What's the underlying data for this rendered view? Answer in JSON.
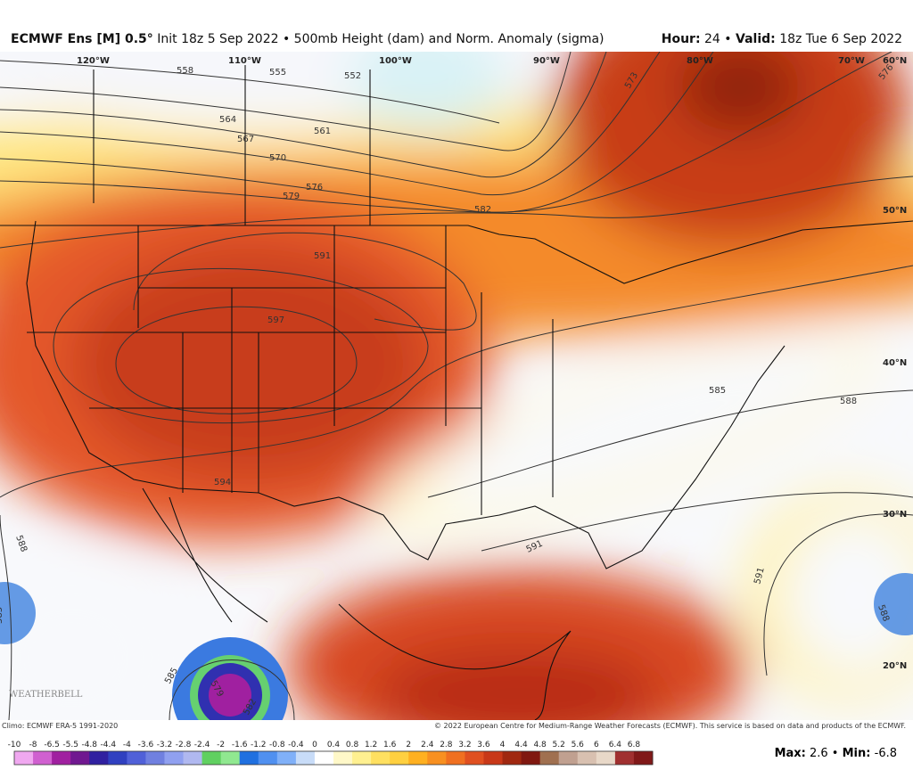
{
  "header": {
    "model": "ECMWF Ens [M] 0.5°",
    "description": "Init 18z 5 Sep 2022 • 500mb Height (dam) and Norm. Anomaly (sigma)",
    "hour_label": "Hour:",
    "hour": "24 •",
    "valid_label": "Valid:",
    "valid": "18z Tue 6 Sep 2022"
  },
  "map": {
    "longitudes": [
      "120°W",
      "110°W",
      "100°W",
      "90°W",
      "80°W",
      "70°W"
    ],
    "latitudes": [
      "60°N",
      "50°N",
      "40°N",
      "30°N",
      "20°N"
    ],
    "contour_labels": [
      "558",
      "555",
      "552",
      "564",
      "561",
      "567",
      "570",
      "576",
      "579",
      "582",
      "573",
      "576",
      "591",
      "597",
      "594",
      "585",
      "588",
      "591",
      "591",
      "588",
      "585",
      "585",
      "579",
      "582",
      "588"
    ],
    "logo": "WEATHERBELL"
  },
  "footer": {
    "climo": "Climo: ECMWF ERA-5 1991-2020",
    "copyright": "© 2022 European Centre for Medium-Range Weather Forecasts (ECMWF). This service is based on data and products of the ECMWF.",
    "colorbar": {
      "ticks": [
        -10,
        -8,
        -6.5,
        -5.5,
        -4.8,
        -4.4,
        -4,
        -3.6,
        -3.2,
        -2.8,
        -2.4,
        -2,
        -1.6,
        -1.2,
        -0.8,
        -0.4,
        0,
        0.4,
        0.8,
        1.2,
        1.6,
        2,
        2.4,
        2.8,
        3.2,
        3.6,
        4,
        4.4,
        4.8,
        5.2,
        5.6,
        6,
        6.4,
        6.8
      ],
      "colors": [
        "#f0a8f0",
        "#d060d0",
        "#a020a0",
        "#701890",
        "#3020a0",
        "#3040c0",
        "#5060d8",
        "#7080e0",
        "#90a0f0",
        "#b0b8f0",
        "#60d060",
        "#90e890",
        "#2070e0",
        "#5090f0",
        "#80b0f8",
        "#c8dcf8",
        "#ffffff",
        "#fff8c8",
        "#fff090",
        "#ffe060",
        "#ffd040",
        "#ffb020",
        "#f89020",
        "#f07020",
        "#e05020",
        "#c83818",
        "#a02810",
        "#801810",
        "#a07050",
        "#c0a090",
        "#d8c0b0",
        "#e8d8c8",
        "#a03030",
        "#801818"
      ]
    },
    "max_label": "Max:",
    "max": "2.6 •",
    "min_label": "Min:",
    "min": "-6.8"
  }
}
